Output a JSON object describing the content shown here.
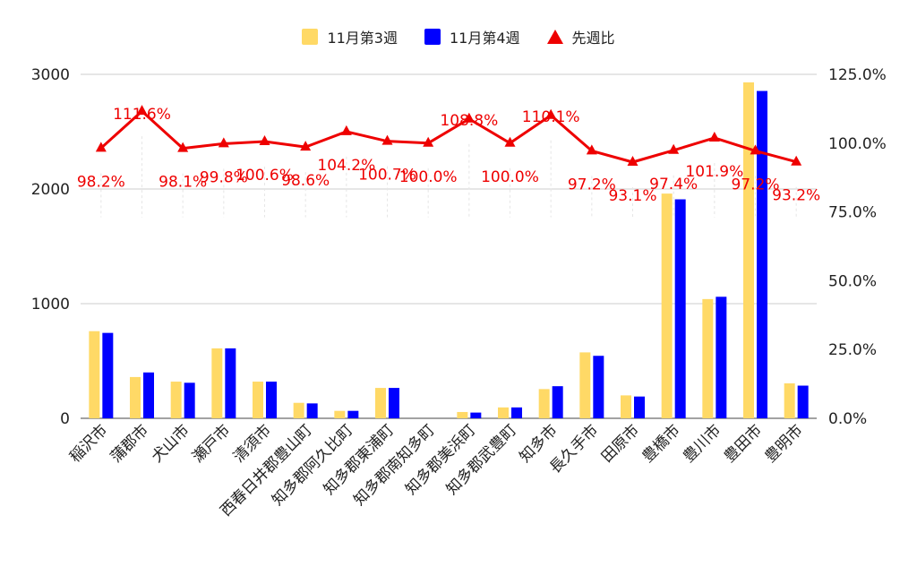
{
  "chart_data": {
    "type": "bar",
    "legend_position": "top",
    "grid": true,
    "categories": [
      "稲沢市",
      "蒲郡市",
      "犬山市",
      "瀬戸市",
      "清須市",
      "西春日井郡豊山町",
      "知多郡阿久比町",
      "知多郡東浦町",
      "知多郡南知多町",
      "知多郡美浜町",
      "知多郡武豊町",
      "知多市",
      "長久手市",
      "田原市",
      "豊橋市",
      "豊川市",
      "豊田市",
      "豊明市"
    ],
    "series": [
      {
        "name": "11月第3週",
        "type": "bar",
        "axis": "left",
        "color": "#FFD966",
        "values": [
          760,
          360,
          320,
          610,
          320,
          135,
          65,
          265,
          0,
          55,
          95,
          255,
          575,
          200,
          1960,
          1040,
          2930,
          305
        ]
      },
      {
        "name": "11月第4週",
        "type": "bar",
        "axis": "left",
        "color": "#0000FF",
        "values": [
          745,
          400,
          310,
          610,
          320,
          130,
          65,
          265,
          0,
          50,
          95,
          280,
          545,
          190,
          1910,
          1060,
          2855,
          285
        ]
      },
      {
        "name": "先週比",
        "type": "line",
        "axis": "right",
        "color": "#EE0000",
        "values": [
          98.2,
          111.6,
          98.1,
          99.8,
          100.6,
          98.6,
          104.2,
          100.7,
          100.0,
          108.8,
          100.0,
          110.1,
          97.2,
          93.1,
          97.4,
          101.9,
          97.2,
          93.2
        ],
        "labels": [
          "98.2%",
          "111.6%",
          "98.1%",
          "99.8%",
          "100.6%",
          "98.6%",
          "104.2%",
          "100.7%",
          "100.0%",
          "108.8%",
          "100.0%",
          "110.1%",
          "97.2%",
          "93.1%",
          "97.4%",
          "101.9%",
          "97.2%",
          "93.2%"
        ]
      }
    ],
    "left_axis": {
      "min": 0,
      "max": 3000,
      "ticks": [
        "0",
        "1000",
        "2000",
        "3000"
      ]
    },
    "right_axis": {
      "min": 0,
      "max": 125,
      "ticks": [
        "0.0%",
        "25.0%",
        "50.0%",
        "75.0%",
        "100.0%",
        "125.0%"
      ]
    }
  }
}
